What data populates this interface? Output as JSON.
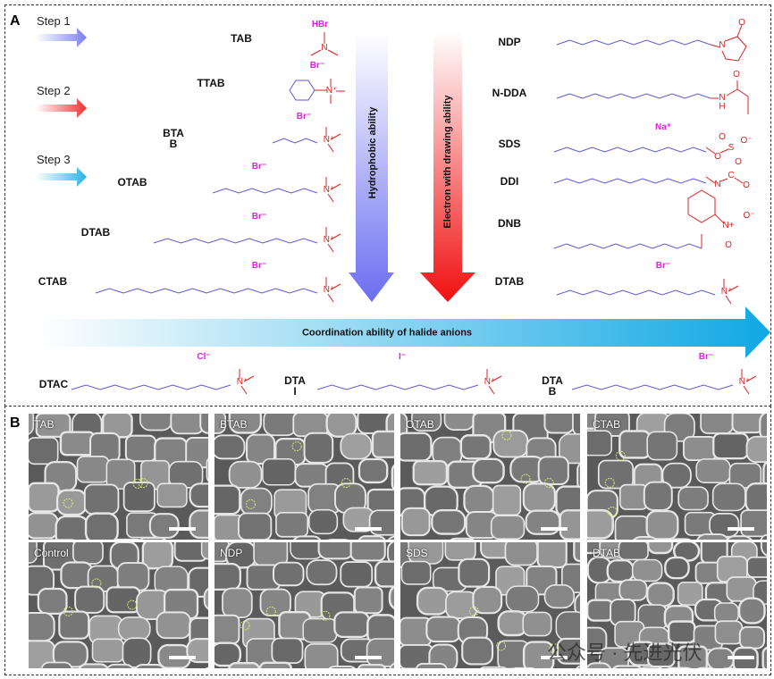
{
  "panels": {
    "a": "A",
    "b": "B"
  },
  "steps": [
    "Step 1",
    "Step 2",
    "Step 3"
  ],
  "colors": {
    "step1": "#7a80f0",
    "step2": "#f03030",
    "step3": "#28b4e8",
    "chain": "#5a5ad8",
    "hetero": "#e02020",
    "ion": "#e020e0"
  },
  "left_molecules": [
    {
      "name": "TAB",
      "ion": "HBr"
    },
    {
      "name": "TTAB",
      "ion": "Br⁻"
    },
    {
      "name": "BTA\nB",
      "ion": "Br⁻"
    },
    {
      "name": "OTAB",
      "ion": "Br⁻"
    },
    {
      "name": "DTAB",
      "ion": "Br⁻"
    },
    {
      "name": "CTAB",
      "ion": "Br⁻"
    }
  ],
  "right_molecules": [
    {
      "name": "NDP"
    },
    {
      "name": "N-DDA"
    },
    {
      "name": "SDS",
      "ion": "Na⁺"
    },
    {
      "name": "DDI"
    },
    {
      "name": "DNB"
    },
    {
      "name": "DTAB",
      "ion": "Br⁻"
    }
  ],
  "arrows": {
    "hydrophobic": "Hydrophobic ability",
    "electron": "Electron with drawing ability",
    "coordination": "Coordination ability of halide anions"
  },
  "halide_molecules": [
    {
      "name": "DTAC",
      "ion": "Cl⁻"
    },
    {
      "name": "DTA\nI",
      "ion": "I⁻"
    },
    {
      "name": "DTA\nB",
      "ion": "Br⁻"
    }
  ],
  "atoms": {
    "n": "N",
    "nplus": "N⁺",
    "o": "O",
    "ominus": "O⁻",
    "s": "S",
    "c": "C",
    "nh": "N\nH",
    "nplus2": "N+"
  },
  "sem_images": [
    {
      "label": "TAB"
    },
    {
      "label": "BTAB"
    },
    {
      "label": "OTAB"
    },
    {
      "label": "CTAB"
    },
    {
      "label": "Control"
    },
    {
      "label": "NDP"
    },
    {
      "label": "SDS"
    },
    {
      "label": "DTAB"
    }
  ],
  "watermark": "公众号 · 先进光伏"
}
